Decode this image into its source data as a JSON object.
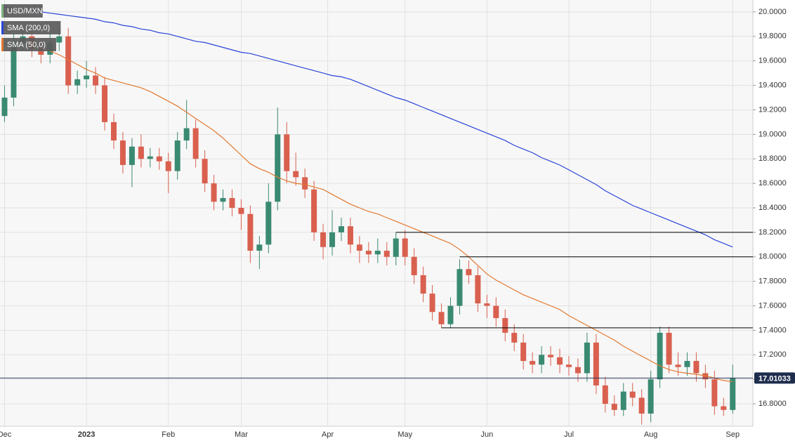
{
  "chart_data": {
    "type": "candlestick",
    "instrument": "USD/MXN",
    "up_color": "#3a8a72",
    "down_color": "#d9604f",
    "categories": [
      null,
      null,
      null,
      null,
      null,
      null,
      null,
      null,
      null,
      null,
      null,
      null,
      null,
      null,
      null,
      null,
      null,
      null,
      null,
      null,
      null,
      null,
      null,
      null,
      null,
      null,
      null,
      null,
      null,
      null,
      null,
      null,
      null,
      null,
      null,
      null,
      null,
      null,
      null,
      null,
      null,
      null,
      null,
      null,
      null,
      null,
      null,
      null,
      null,
      null,
      null,
      null,
      null,
      null,
      null,
      null,
      null,
      null,
      null,
      null,
      null,
      null,
      null,
      null,
      null,
      null,
      null,
      null,
      null,
      null,
      null,
      null,
      null,
      null,
      null,
      null,
      null,
      null,
      null,
      null,
      null
    ],
    "open": [
      19.15,
      19.3,
      19.75,
      19.8,
      19.7,
      19.65,
      19.75,
      19.8,
      19.4,
      19.45,
      19.48,
      19.4,
      19.1,
      18.95,
      18.75,
      18.9,
      18.8,
      18.82,
      18.78,
      18.7,
      18.95,
      19.05,
      18.8,
      18.6,
      18.45,
      18.48,
      18.4,
      18.35,
      18.05,
      18.1,
      18.45,
      19.0,
      18.7,
      18.65,
      18.55,
      18.2,
      18.08,
      18.2,
      18.25,
      18.1,
      18.05,
      18.02,
      18.05,
      18.0,
      18.15,
      18.0,
      17.85,
      17.7,
      17.55,
      17.45,
      17.6,
      17.9,
      17.85,
      17.62,
      17.6,
      17.5,
      17.38,
      17.3,
      17.15,
      17.12,
      17.2,
      17.18,
      17.12,
      17.1,
      17.05,
      17.3,
      16.95,
      16.8,
      16.75,
      16.9,
      16.85,
      16.72,
      17.0,
      17.38,
      17.12,
      17.1,
      17.15,
      17.05,
      17.0,
      16.78,
      16.75
    ],
    "high": [
      19.4,
      19.82,
      19.88,
      19.87,
      19.77,
      19.82,
      19.87,
      19.87,
      19.52,
      19.6,
      19.55,
      19.47,
      19.17,
      19.02,
      18.97,
      19.0,
      18.89,
      18.89,
      18.85,
      19.02,
      19.28,
      19.12,
      18.87,
      18.67,
      18.55,
      18.55,
      18.47,
      18.42,
      18.17,
      18.6,
      19.22,
      19.1,
      18.85,
      18.72,
      18.62,
      18.27,
      18.38,
      18.32,
      18.32,
      18.17,
      18.12,
      18.15,
      18.12,
      18.2,
      18.22,
      18.07,
      17.92,
      17.77,
      17.62,
      17.67,
      17.98,
      17.97,
      17.92,
      17.69,
      17.67,
      17.57,
      17.45,
      17.37,
      17.22,
      17.27,
      17.27,
      17.25,
      17.19,
      17.17,
      17.38,
      17.37,
      17.02,
      16.87,
      16.97,
      16.97,
      16.92,
      17.07,
      17.43,
      17.43,
      17.22,
      17.22,
      17.22,
      17.12,
      17.07,
      16.85,
      17.12
    ],
    "low": [
      19.1,
      19.23,
      19.68,
      19.63,
      19.58,
      19.58,
      19.68,
      19.33,
      19.33,
      19.38,
      19.33,
      19.03,
      18.88,
      18.68,
      18.57,
      18.73,
      18.73,
      18.71,
      18.52,
      18.63,
      18.88,
      18.73,
      18.53,
      18.38,
      18.38,
      18.33,
      18.22,
      17.95,
      17.9,
      18.03,
      18.38,
      18.6,
      18.58,
      18.48,
      18.13,
      17.98,
      18.01,
      18.13,
      18.03,
      17.95,
      17.95,
      17.95,
      17.93,
      17.93,
      17.93,
      17.78,
      17.63,
      17.48,
      17.42,
      17.42,
      17.53,
      17.78,
      17.55,
      17.5,
      17.43,
      17.31,
      17.23,
      17.08,
      17.05,
      17.05,
      17.11,
      17.05,
      17.03,
      16.98,
      16.98,
      16.88,
      16.73,
      16.7,
      16.7,
      16.78,
      16.63,
      16.65,
      16.93,
      17.05,
      17.03,
      17.03,
      16.98,
      16.93,
      16.71,
      16.7,
      16.72
    ],
    "close": [
      19.3,
      19.75,
      19.8,
      19.7,
      19.65,
      19.75,
      19.8,
      19.4,
      19.45,
      19.48,
      19.4,
      19.1,
      18.95,
      18.75,
      18.9,
      18.8,
      18.82,
      18.78,
      18.7,
      18.95,
      19.05,
      18.8,
      18.6,
      18.45,
      18.48,
      18.4,
      18.35,
      18.05,
      18.1,
      18.45,
      19.0,
      18.7,
      18.65,
      18.55,
      18.2,
      18.08,
      18.2,
      18.25,
      18.1,
      18.05,
      18.02,
      18.05,
      18.0,
      18.15,
      18.0,
      17.85,
      17.7,
      17.55,
      17.45,
      17.6,
      17.9,
      17.85,
      17.62,
      17.6,
      17.5,
      17.38,
      17.3,
      17.15,
      17.12,
      17.2,
      17.18,
      17.12,
      17.1,
      17.05,
      17.3,
      16.95,
      16.8,
      16.75,
      16.9,
      16.85,
      16.72,
      17.0,
      17.38,
      17.12,
      17.1,
      17.15,
      17.05,
      17.0,
      16.78,
      16.75,
      17.01
    ],
    "series": [
      {
        "name": "SMA (200,0)",
        "color": "#2a44d8",
        "values": [
          20.04,
          20.03,
          20.02,
          20.01,
          20.0,
          19.99,
          19.98,
          19.97,
          19.96,
          19.95,
          19.94,
          19.92,
          19.91,
          19.89,
          19.88,
          19.86,
          19.85,
          19.83,
          19.82,
          19.8,
          19.78,
          19.76,
          19.75,
          19.73,
          19.71,
          19.69,
          19.67,
          19.66,
          19.64,
          19.62,
          19.6,
          19.58,
          19.56,
          19.54,
          19.52,
          19.5,
          19.48,
          19.47,
          19.45,
          19.42,
          19.39,
          19.36,
          19.33,
          19.3,
          19.28,
          19.25,
          19.22,
          19.19,
          19.16,
          19.13,
          19.1,
          19.07,
          19.04,
          19.01,
          18.98,
          18.95,
          18.91,
          18.88,
          18.85,
          18.81,
          18.78,
          18.75,
          18.71,
          18.67,
          18.63,
          18.59,
          18.54,
          18.5,
          18.46,
          18.42,
          18.39,
          18.36,
          18.33,
          18.3,
          18.27,
          18.24,
          18.21,
          18.18,
          18.14,
          18.11,
          18.08
        ]
      },
      {
        "name": "SMA (50,0)",
        "color": "#e2792f",
        "values": [
          null,
          null,
          null,
          null,
          19.72,
          19.68,
          19.65,
          19.61,
          19.57,
          19.53,
          19.5,
          19.46,
          19.44,
          19.42,
          19.4,
          19.38,
          19.35,
          19.31,
          19.27,
          19.23,
          19.18,
          19.13,
          19.08,
          19.03,
          18.97,
          18.9,
          18.83,
          18.76,
          18.72,
          18.69,
          18.65,
          18.62,
          18.6,
          18.59,
          18.57,
          18.55,
          18.51,
          18.47,
          18.43,
          18.4,
          18.37,
          18.35,
          18.32,
          18.29,
          18.26,
          18.23,
          18.2,
          18.17,
          18.14,
          18.11,
          18.06,
          18.0,
          17.93,
          17.86,
          17.81,
          17.77,
          17.73,
          17.69,
          17.66,
          17.63,
          17.6,
          17.57,
          17.52,
          17.48,
          17.44,
          17.4,
          17.36,
          17.32,
          17.27,
          17.23,
          17.19,
          17.15,
          17.11,
          17.08,
          17.06,
          17.05,
          17.04,
          17.03,
          17.01,
          16.99,
          16.98
        ]
      }
    ],
    "levels": [
      {
        "value": 18.2,
        "start": 43
      },
      {
        "value": 18.0,
        "start": 50
      },
      {
        "value": 17.42,
        "start": 48
      }
    ],
    "last_price": 17.01033,
    "xticks": [
      {
        "value": 0,
        "label": "Dec"
      },
      {
        "value": 9,
        "label": "2023"
      },
      {
        "value": 18,
        "label": "Feb"
      },
      {
        "value": 26,
        "label": "Mar"
      },
      {
        "value": 35.5,
        "label": "Apr"
      },
      {
        "value": 44,
        "label": "May"
      },
      {
        "value": 53,
        "label": "Jun"
      },
      {
        "value": 62,
        "label": "Jul"
      },
      {
        "value": 71,
        "label": "Aug"
      },
      {
        "value": 80,
        "label": "Sep"
      }
    ],
    "ylim": [
      16.617,
      20.097
    ],
    "yticks": [
      {
        "value": 16.8,
        "label": "16.8000"
      },
      {
        "value": 17.0,
        "label": "17.0000"
      },
      {
        "value": 17.2,
        "label": "17.2000"
      },
      {
        "value": 17.4,
        "label": "17.4000"
      },
      {
        "value": 17.6,
        "label": "17.6000"
      },
      {
        "value": 17.8,
        "label": "17.8000"
      },
      {
        "value": 18.0,
        "label": "18.0000"
      },
      {
        "value": 18.2,
        "label": "18.2000"
      },
      {
        "value": 18.4,
        "label": "18.4000"
      },
      {
        "value": 18.6,
        "label": "18.6000"
      },
      {
        "value": 18.8,
        "label": "18.8000"
      },
      {
        "value": 19.0,
        "label": "19.0000"
      },
      {
        "value": 19.2,
        "label": "19.2000"
      },
      {
        "value": 19.4,
        "label": "19.4000"
      },
      {
        "value": 19.6,
        "label": "19.6000"
      },
      {
        "value": 19.8,
        "label": "19.8000"
      },
      {
        "value": 20.0,
        "label": "20.0000"
      }
    ],
    "grid": true
  }
}
